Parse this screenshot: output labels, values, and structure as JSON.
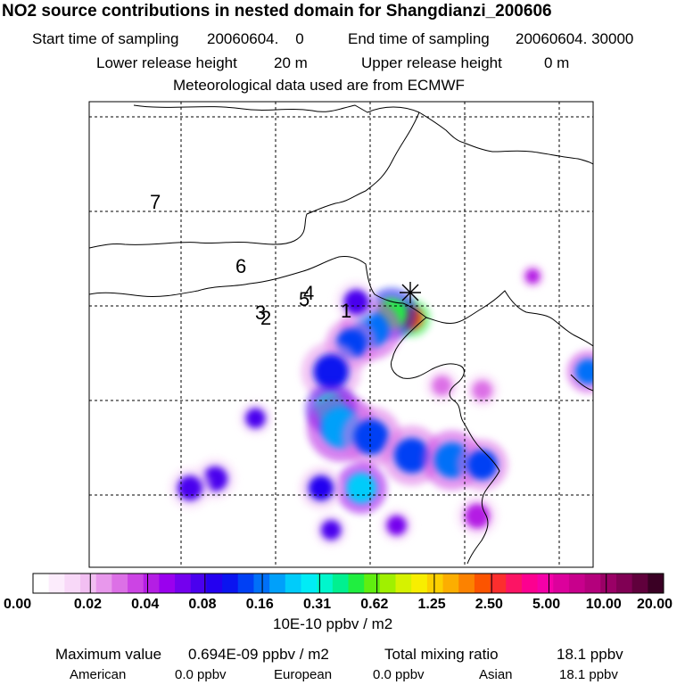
{
  "header": {
    "title": "NO2 source contributions in nested domain for Shangdianzi_200606",
    "start_label": "Start time of sampling",
    "start_value": "20060604.    0",
    "end_label": "End time of sampling",
    "end_value": "20060604. 30000",
    "lower_label": "Lower release height",
    "lower_value": "20 m",
    "upper_label": "Upper release height",
    "upper_value": "0 m",
    "met_line": "Meteorological data used are from ECMWF"
  },
  "chart_data": {
    "type": "heatmap",
    "title": "NO2 source contributions in nested domain for Shangdianzi_200606",
    "unit_label": "10E-10 ppbv / m2",
    "colorbar_ticks": [
      "0.00",
      "0.02",
      "0.04",
      "0.08",
      "0.16",
      "0.31",
      "0.62",
      "1.25",
      "2.50",
      "5.00",
      "10.00",
      "20.00"
    ],
    "colorbar_colors": [
      "#ffffff",
      "#fcecfc",
      "#f8d8f8",
      "#f2bff2",
      "#e898ec",
      "#dc70e6",
      "#cc44e4",
      "#b41ee4",
      "#9a00ee",
      "#7400ee",
      "#4a00ee",
      "#2400f0",
      "#0a14f0",
      "#0040f4",
      "#0070f8",
      "#00a0fa",
      "#00ccfa",
      "#00ecf6",
      "#00f6cc",
      "#00f090",
      "#20ee40",
      "#60ee10",
      "#a0f000",
      "#d6f200",
      "#f8ee00",
      "#fcd000",
      "#fcae00",
      "#fc8200",
      "#fc5400",
      "#fc2e2e",
      "#fc1464",
      "#fc0090",
      "#f400a8",
      "#dc009c",
      "#c8008c",
      "#b4007c",
      "#9a0066",
      "#800054",
      "#60003c",
      "#3a0024"
    ],
    "receptor_marker": "Shangdianzi",
    "map_labels": [
      "7",
      "6",
      "5",
      "4",
      "3",
      "2",
      "1"
    ],
    "blobs": [
      {
        "lon": 0.64,
        "lat": 0.535,
        "level": 28,
        "size": 0.022
      },
      {
        "lon": 0.6,
        "lat": 0.545,
        "level": 20,
        "size": 0.03
      },
      {
        "lon": 0.56,
        "lat": 0.51,
        "level": 14,
        "size": 0.035
      },
      {
        "lon": 0.52,
        "lat": 0.48,
        "level": 13,
        "size": 0.03
      },
      {
        "lon": 0.48,
        "lat": 0.42,
        "level": 12,
        "size": 0.035
      },
      {
        "lon": 0.48,
        "lat": 0.34,
        "level": 18,
        "size": 0.03
      },
      {
        "lon": 0.5,
        "lat": 0.3,
        "level": 15,
        "size": 0.04
      },
      {
        "lon": 0.56,
        "lat": 0.28,
        "level": 13,
        "size": 0.035
      },
      {
        "lon": 0.64,
        "lat": 0.24,
        "level": 13,
        "size": 0.035
      },
      {
        "lon": 0.72,
        "lat": 0.23,
        "level": 14,
        "size": 0.035
      },
      {
        "lon": 0.78,
        "lat": 0.22,
        "level": 13,
        "size": 0.03
      },
      {
        "lon": 0.54,
        "lat": 0.17,
        "level": 16,
        "size": 0.03
      },
      {
        "lon": 0.46,
        "lat": 0.17,
        "level": 11,
        "size": 0.025
      },
      {
        "lon": 0.48,
        "lat": 0.08,
        "level": 10,
        "size": 0.02
      },
      {
        "lon": 0.61,
        "lat": 0.09,
        "level": 9,
        "size": 0.02
      },
      {
        "lon": 0.77,
        "lat": 0.11,
        "level": 7,
        "size": 0.025
      },
      {
        "lon": 0.25,
        "lat": 0.19,
        "level": 10,
        "size": 0.025
      },
      {
        "lon": 0.2,
        "lat": 0.17,
        "level": 10,
        "size": 0.025
      },
      {
        "lon": 0.33,
        "lat": 0.32,
        "level": 10,
        "size": 0.02
      },
      {
        "lon": 0.53,
        "lat": 0.57,
        "level": 10,
        "size": 0.025
      },
      {
        "lon": 0.88,
        "lat": 0.625,
        "level": 7,
        "size": 0.015
      },
      {
        "lon": 0.99,
        "lat": 0.42,
        "level": 14,
        "size": 0.025
      },
      {
        "lon": 0.7,
        "lat": 0.39,
        "level": 5,
        "size": 0.02
      },
      {
        "lon": 0.78,
        "lat": 0.38,
        "level": 5,
        "size": 0.02
      }
    ]
  },
  "footer": {
    "max_label": "Maximum value",
    "max_value": "0.694E-09 ppbv / m2",
    "total_label": "Total mixing ratio",
    "total_value": "18.1 ppbv",
    "american_label": "American",
    "american_value": "0.0 ppbv",
    "european_label": "European",
    "european_value": "0.0 ppbv",
    "asian_label": "Asian",
    "asian_value": "18.1 ppbv"
  }
}
